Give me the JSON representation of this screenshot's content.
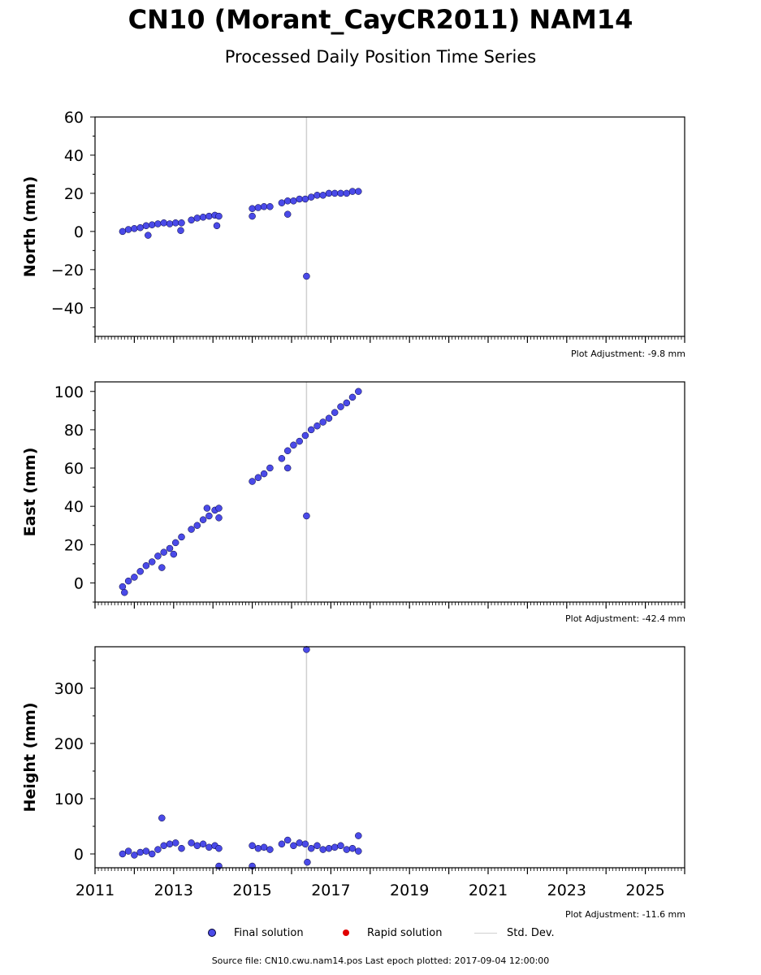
{
  "title": "CN10 (Morant_CayCR2011) NAM14",
  "subtitle": "Processed Daily Position Time Series",
  "colors": {
    "final": "#4a4ae8",
    "final_edge": "#000033",
    "rapid": "#e00000",
    "stddev": "#d0d0d0"
  },
  "legend": {
    "final": "Final solution",
    "rapid": "Rapid solution",
    "stddev": "Std. Dev."
  },
  "footer": "Source file: CN10.cwu.nam14.pos  Last epoch plotted: 2017-09-04 12:00:00",
  "chart_data": [
    {
      "type": "scatter",
      "ylabel": "North (mm)",
      "adjustment": "Plot Adjustment: -9.8 mm",
      "xlim": [
        2011.0,
        2026.0
      ],
      "ylim": [
        -55,
        60
      ],
      "yticks": [
        -40,
        -20,
        0,
        20,
        40,
        60
      ],
      "ytick_labels": [
        "−40",
        "−20",
        "0",
        "20",
        "40",
        "60"
      ],
      "series": [
        {
          "x": [
            2011.7,
            2011.85,
            2012.0,
            2012.15,
            2012.3,
            2012.45,
            2012.6,
            2012.75,
            2012.9,
            2013.05,
            2013.2,
            2013.45,
            2013.6,
            2013.75,
            2013.9,
            2014.05,
            2014.15,
            2015.0,
            2015.15,
            2015.3,
            2015.45,
            2015.75,
            2015.9,
            2016.05,
            2016.2,
            2016.35,
            2016.5,
            2016.65,
            2016.8,
            2016.95,
            2017.1,
            2017.25,
            2017.4,
            2017.55,
            2017.7
          ],
          "y": [
            0,
            1,
            1.5,
            2,
            3,
            3.5,
            4,
            4.5,
            4,
            4.5,
            4.5,
            6,
            7,
            7.5,
            8,
            8.5,
            8,
            12,
            12.5,
            13,
            13,
            15,
            16,
            16,
            17,
            17,
            18,
            19,
            19,
            20,
            20,
            20,
            20,
            21,
            21
          ]
        },
        {
          "x": [
            2012.35,
            2013.18,
            2014.1,
            2015.0,
            2015.9,
            2016.38
          ],
          "y": [
            -2,
            0.5,
            3,
            8,
            9,
            -23.5
          ]
        }
      ]
    },
    {
      "type": "scatter",
      "ylabel": "East (mm)",
      "adjustment": "Plot Adjustment: -42.4 mm",
      "xlim": [
        2011.0,
        2026.0
      ],
      "ylim": [
        -10,
        105
      ],
      "yticks": [
        0,
        20,
        40,
        60,
        80,
        100
      ],
      "ytick_labels": [
        "0",
        "20",
        "40",
        "60",
        "80",
        "100"
      ],
      "series": [
        {
          "x": [
            2011.7,
            2011.85,
            2012.0,
            2012.15,
            2012.3,
            2012.45,
            2012.6,
            2012.75,
            2012.9,
            2013.05,
            2013.2,
            2013.45,
            2013.6,
            2013.75,
            2013.9,
            2014.05,
            2014.15,
            2015.0,
            2015.15,
            2015.3,
            2015.45,
            2015.75,
            2015.9,
            2016.05,
            2016.2,
            2016.35,
            2016.5,
            2016.65,
            2016.8,
            2016.95,
            2017.1,
            2017.25,
            2017.4,
            2017.55,
            2017.7
          ],
          "y": [
            -2,
            1,
            3,
            6,
            9,
            11,
            14,
            16,
            18,
            21,
            24,
            28,
            30,
            33,
            35,
            38,
            39,
            53,
            55,
            57,
            60,
            65,
            69,
            72,
            74,
            77,
            80,
            82,
            84,
            86,
            89,
            92,
            94,
            97,
            100
          ]
        },
        {
          "x": [
            2011.75,
            2012.7,
            2013.0,
            2013.85,
            2014.15,
            2015.9,
            2016.38
          ],
          "y": [
            -5,
            8,
            15,
            39,
            34,
            60,
            35
          ]
        }
      ]
    },
    {
      "type": "scatter",
      "ylabel": "Height (mm)",
      "adjustment": "Plot Adjustment: -11.6 mm",
      "xlim": [
        2011.0,
        2026.0
      ],
      "ylim": [
        -25,
        375
      ],
      "yticks": [
        0,
        100,
        200,
        300
      ],
      "ytick_labels": [
        "0",
        "100",
        "200",
        "300"
      ],
      "xticks": [
        2011,
        2013,
        2015,
        2017,
        2019,
        2021,
        2023,
        2025
      ],
      "xtick_labels": [
        "2011",
        "2013",
        "2015",
        "2017",
        "2019",
        "2021",
        "2023",
        "2025"
      ],
      "series": [
        {
          "x": [
            2011.7,
            2011.85,
            2012.0,
            2012.15,
            2012.3,
            2012.45,
            2012.6,
            2012.75,
            2012.9,
            2013.05,
            2013.2,
            2013.45,
            2013.6,
            2013.75,
            2013.9,
            2014.05,
            2014.15,
            2015.0,
            2015.15,
            2015.3,
            2015.45,
            2015.75,
            2015.9,
            2016.05,
            2016.2,
            2016.35,
            2016.5,
            2016.65,
            2016.8,
            2016.95,
            2017.1,
            2017.25,
            2017.4,
            2017.55,
            2017.7
          ],
          "y": [
            0,
            5,
            -2,
            3,
            5,
            0,
            8,
            15,
            18,
            20,
            10,
            20,
            15,
            18,
            12,
            15,
            10,
            15,
            10,
            12,
            8,
            18,
            25,
            15,
            20,
            18,
            10,
            15,
            8,
            10,
            12,
            15,
            8,
            10,
            5
          ]
        },
        {
          "x": [
            2012.7,
            2016.38,
            2014.15,
            2015.0,
            2016.4,
            2017.7
          ],
          "y": [
            65,
            370,
            -22,
            -22,
            -15,
            33
          ]
        }
      ]
    }
  ]
}
